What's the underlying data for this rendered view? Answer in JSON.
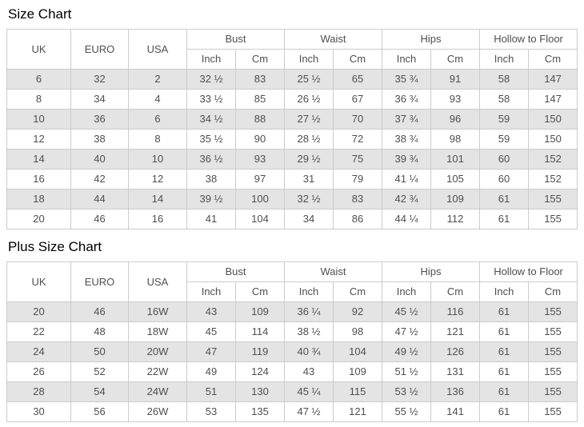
{
  "sections": [
    {
      "title": "Size Chart"
    },
    {
      "title": "Plus Size Chart"
    }
  ],
  "headers": {
    "uk": "UK",
    "euro": "EURO",
    "usa": "USA",
    "bust": "Bust",
    "waist": "Waist",
    "hips": "Hips",
    "hollow_to_floor": "Hollow to Floor",
    "inch": "Inch",
    "cm": "Cm"
  },
  "size_chart_rows": [
    [
      "6",
      "32",
      "2",
      "32 ½",
      "83",
      "25 ½",
      "65",
      "35 ¾",
      "91",
      "58",
      "147"
    ],
    [
      "8",
      "34",
      "4",
      "33 ½",
      "85",
      "26 ½",
      "67",
      "36 ¾",
      "93",
      "58",
      "147"
    ],
    [
      "10",
      "36",
      "6",
      "34 ½",
      "88",
      "27 ½",
      "70",
      "37 ¾",
      "96",
      "59",
      "150"
    ],
    [
      "12",
      "38",
      "8",
      "35 ½",
      "90",
      "28 ½",
      "72",
      "38 ¾",
      "98",
      "59",
      "150"
    ],
    [
      "14",
      "40",
      "10",
      "36 ½",
      "93",
      "29 ½",
      "75",
      "39 ¾",
      "101",
      "60",
      "152"
    ],
    [
      "16",
      "42",
      "12",
      "38",
      "97",
      "31",
      "79",
      "41 ¼",
      "105",
      "60",
      "152"
    ],
    [
      "18",
      "44",
      "14",
      "39 ½",
      "100",
      "32 ½",
      "83",
      "42 ¾",
      "109",
      "61",
      "155"
    ],
    [
      "20",
      "46",
      "16",
      "41",
      "104",
      "34",
      "86",
      "44 ¼",
      "112",
      "61",
      "155"
    ]
  ],
  "plus_size_chart_rows": [
    [
      "20",
      "46",
      "16W",
      "43",
      "109",
      "36 ¼",
      "92",
      "45 ½",
      "116",
      "61",
      "155"
    ],
    [
      "22",
      "48",
      "18W",
      "45",
      "114",
      "38 ½",
      "98",
      "47 ½",
      "121",
      "61",
      "155"
    ],
    [
      "24",
      "50",
      "20W",
      "47",
      "119",
      "40 ¾",
      "104",
      "49 ½",
      "126",
      "61",
      "155"
    ],
    [
      "26",
      "52",
      "22W",
      "49",
      "124",
      "43",
      "109",
      "51 ½",
      "131",
      "61",
      "155"
    ],
    [
      "28",
      "54",
      "24W",
      "51",
      "130",
      "45 ¼",
      "115",
      "53 ½",
      "136",
      "61",
      "155"
    ],
    [
      "30",
      "56",
      "26W",
      "53",
      "135",
      "47 ½",
      "121",
      "55 ½",
      "141",
      "61",
      "155"
    ]
  ],
  "colors": {
    "stripe": "#e4e4e4",
    "border": "#cccccc",
    "table_text": "#4f4f4f",
    "title_text": "#000000"
  }
}
